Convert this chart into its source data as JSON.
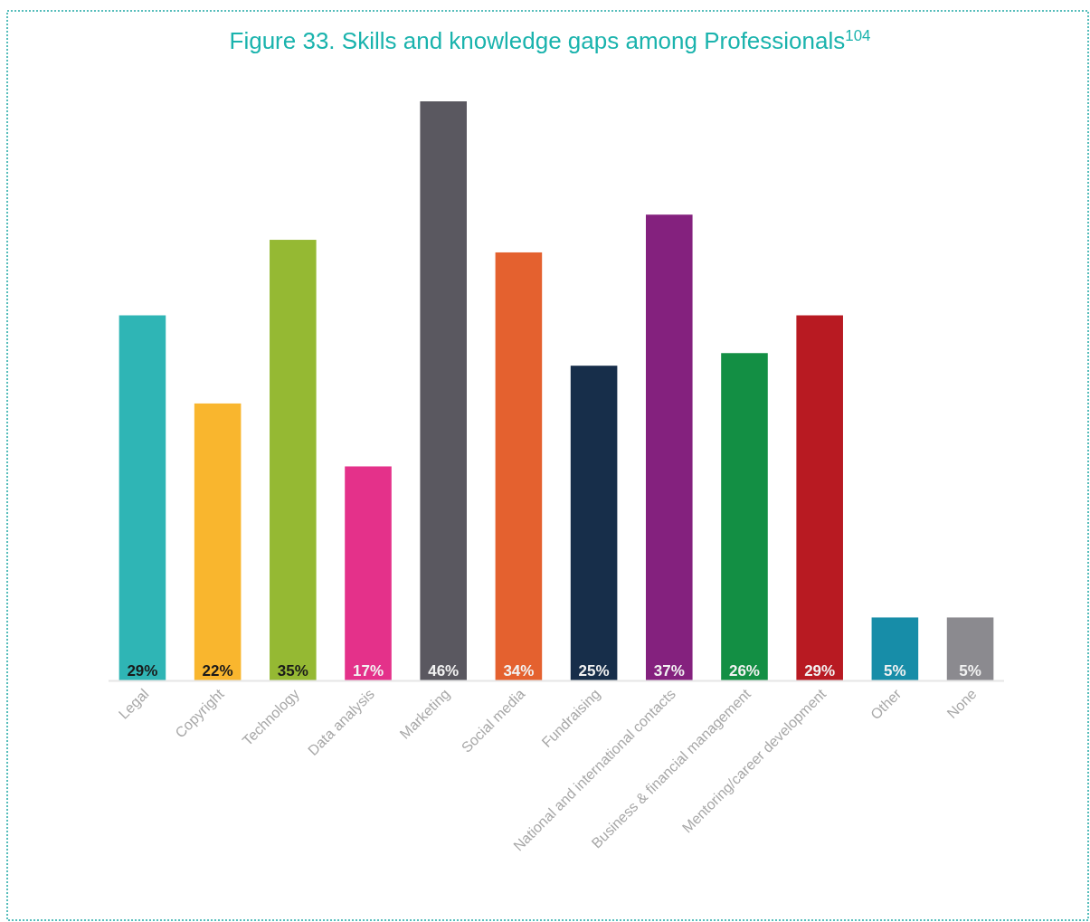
{
  "chart_data": {
    "type": "bar",
    "title": "Figure 33. Skills and knowledge gaps among Professionals$^{104}$",
    "categories": [
      "Legal",
      "Copyright",
      "Technology",
      "Data analysis",
      "Marketing",
      "Social media",
      "Fundraising",
      "National and international contacts",
      "Business & financial management",
      "Mentoring/career development",
      "Other",
      "None"
    ],
    "values": [
      29,
      22,
      35,
      17,
      46,
      34,
      25,
      37,
      26,
      29,
      5,
      5
    ],
    "colors": [
      "#2fb5b5",
      "#f9b62e",
      "#95b933",
      "#e4318a",
      "#5a5860",
      "#e4612f",
      "#172e4a",
      "#84217e",
      "#138f44",
      "#b81a22",
      "#178da8",
      "#8b8a8f"
    ],
    "value_labels": [
      "29%",
      "22%",
      "35%",
      "17%",
      "46%",
      "34%",
      "25%",
      "37%",
      "26%",
      "29%",
      "5%",
      "5%"
    ]
  }
}
